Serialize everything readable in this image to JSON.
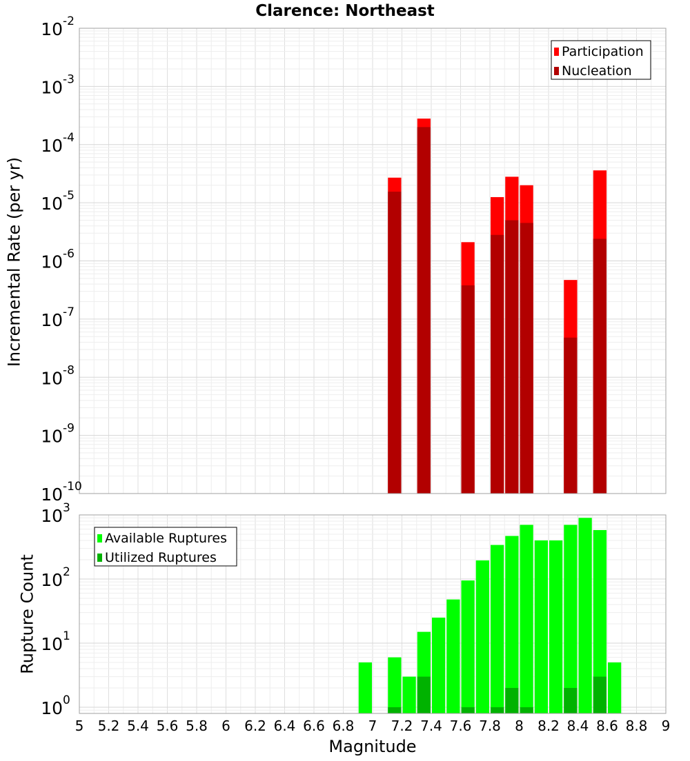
{
  "chart_data": [
    {
      "type": "bar",
      "title": "Clarence: Northeast",
      "xlabel": "",
      "ylabel": "Incremental Rate (per yr)",
      "yscale": "log",
      "ylim": [
        1e-10,
        0.01
      ],
      "xlim": [
        5,
        9
      ],
      "grid": true,
      "legend_position": "top-right",
      "yticks": [
        {
          "base": "10",
          "exp": "-10"
        },
        {
          "base": "10",
          "exp": "-9"
        },
        {
          "base": "10",
          "exp": "-8"
        },
        {
          "base": "10",
          "exp": "-7"
        },
        {
          "base": "10",
          "exp": "-6"
        },
        {
          "base": "10",
          "exp": "-5"
        },
        {
          "base": "10",
          "exp": "-4"
        },
        {
          "base": "10",
          "exp": "-3"
        },
        {
          "base": "10",
          "exp": "-2"
        }
      ],
      "series": [
        {
          "name": "Participation",
          "color": "#ff0000",
          "points": [
            {
              "x": 7.15,
              "y": 2.7e-05
            },
            {
              "x": 7.35,
              "y": 0.00028
            },
            {
              "x": 7.65,
              "y": 2.1e-06
            },
            {
              "x": 7.85,
              "y": 1.25e-05
            },
            {
              "x": 7.95,
              "y": 2.8e-05
            },
            {
              "x": 8.05,
              "y": 2e-05
            },
            {
              "x": 8.35,
              "y": 4.7e-07
            },
            {
              "x": 8.55,
              "y": 3.6e-05
            }
          ]
        },
        {
          "name": "Nucleation",
          "color": "#b20000",
          "points": [
            {
              "x": 7.15,
              "y": 1.55e-05
            },
            {
              "x": 7.35,
              "y": 0.0002
            },
            {
              "x": 7.65,
              "y": 3.8e-07
            },
            {
              "x": 7.85,
              "y": 2.8e-06
            },
            {
              "x": 7.95,
              "y": 5e-06
            },
            {
              "x": 8.05,
              "y": 4.5e-06
            },
            {
              "x": 8.35,
              "y": 4.8e-08
            },
            {
              "x": 8.55,
              "y": 2.4e-06
            }
          ]
        }
      ]
    },
    {
      "type": "bar",
      "title": "",
      "xlabel": "Magnitude",
      "ylabel": "Rupture Count",
      "yscale": "log",
      "ylim": [
        0.8,
        1000
      ],
      "xlim": [
        5,
        9
      ],
      "grid": true,
      "legend_position": "top-left",
      "xticks": [
        "5",
        "5.2",
        "5.4",
        "5.6",
        "5.8",
        "6",
        "6.2",
        "6.4",
        "6.6",
        "6.8",
        "7",
        "7.2",
        "7.4",
        "7.6",
        "7.8",
        "8",
        "8.2",
        "8.4",
        "8.6",
        "8.8",
        "9"
      ],
      "yticks": [
        {
          "base": "10",
          "exp": "0"
        },
        {
          "base": "10",
          "exp": "1"
        },
        {
          "base": "10",
          "exp": "2"
        },
        {
          "base": "10",
          "exp": "3"
        }
      ],
      "series": [
        {
          "name": "Available Ruptures",
          "color": "#00ff00",
          "points": [
            {
              "x": 6.95,
              "y": 5
            },
            {
              "x": 7.15,
              "y": 6
            },
            {
              "x": 7.25,
              "y": 3
            },
            {
              "x": 7.35,
              "y": 15
            },
            {
              "x": 7.45,
              "y": 25
            },
            {
              "x": 7.55,
              "y": 48
            },
            {
              "x": 7.65,
              "y": 95
            },
            {
              "x": 7.75,
              "y": 195
            },
            {
              "x": 7.85,
              "y": 340
            },
            {
              "x": 7.95,
              "y": 470
            },
            {
              "x": 8.05,
              "y": 700
            },
            {
              "x": 8.15,
              "y": 400
            },
            {
              "x": 8.25,
              "y": 400
            },
            {
              "x": 8.35,
              "y": 700
            },
            {
              "x": 8.45,
              "y": 900
            },
            {
              "x": 8.55,
              "y": 580
            },
            {
              "x": 8.65,
              "y": 5
            }
          ]
        },
        {
          "name": "Utilized Ruptures",
          "color": "#00b200",
          "points": [
            {
              "x": 7.15,
              "y": 1
            },
            {
              "x": 7.35,
              "y": 3
            },
            {
              "x": 7.65,
              "y": 1
            },
            {
              "x": 7.85,
              "y": 1
            },
            {
              "x": 7.95,
              "y": 2
            },
            {
              "x": 8.05,
              "y": 1
            },
            {
              "x": 8.35,
              "y": 2
            },
            {
              "x": 8.55,
              "y": 3
            }
          ]
        }
      ]
    }
  ]
}
